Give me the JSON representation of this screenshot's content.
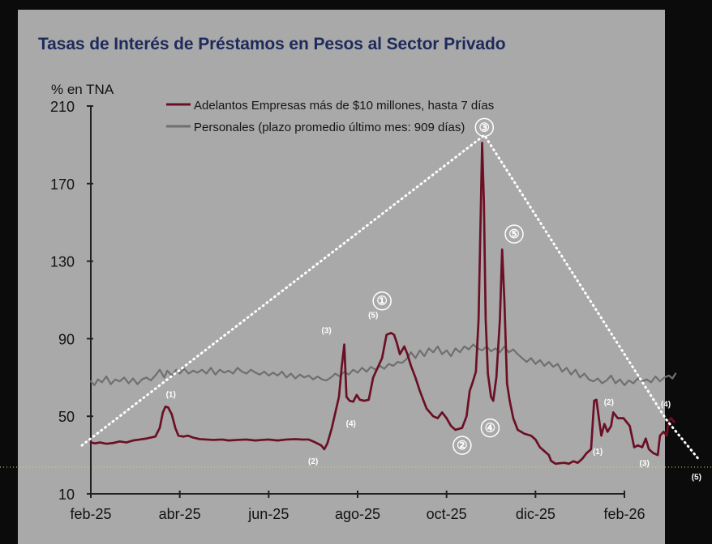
{
  "chart_data": {
    "type": "line",
    "title": "Tasas de Interés de Préstamos en Pesos al Sector Privado",
    "subtitle": "",
    "xlabel": "",
    "ylabel": "% en TNA",
    "ylim": [
      10,
      210
    ],
    "yticks": [
      10,
      50,
      90,
      130,
      170,
      210
    ],
    "x_axis_labels": [
      "feb-25",
      "abr-25",
      "jun-25",
      "ago-25",
      "oct-25",
      "dic-25",
      "feb-26"
    ],
    "x_index_range": [
      0,
      12
    ],
    "legend": {
      "placement": "top-center",
      "entries": [
        {
          "series": "Adelantos",
          "label": "Adelantos Empresas más de $10 millones, hasta 7 días"
        },
        {
          "series": "Personales",
          "label": "Personales (plazo promedio último mes: 909 días)"
        }
      ]
    },
    "grid": false,
    "colors": {
      "background": "#a9a9a9",
      "title": "#1d2a5c",
      "adelantos": "#6b0f24",
      "personales": "#6f6f6f",
      "axis": "#202020",
      "annotation": "#ffffff"
    },
    "series": [
      {
        "name": "Adelantos",
        "label": "Adelantos Empresas más de $10 millones, hasta 7 días",
        "points": [
          [
            0.0,
            36.5
          ],
          [
            0.1,
            36.0
          ],
          [
            0.2,
            36.5
          ],
          [
            0.35,
            35.8
          ],
          [
            0.5,
            36.2
          ],
          [
            0.65,
            37.0
          ],
          [
            0.8,
            36.5
          ],
          [
            0.95,
            37.5
          ],
          [
            1.1,
            38.0
          ],
          [
            1.25,
            38.5
          ],
          [
            1.45,
            39.5
          ],
          [
            1.55,
            44.0
          ],
          [
            1.62,
            52.0
          ],
          [
            1.68,
            55.0
          ],
          [
            1.74,
            54.5
          ],
          [
            1.82,
            51.0
          ],
          [
            1.9,
            44.0
          ],
          [
            1.97,
            40.0
          ],
          [
            2.08,
            39.5
          ],
          [
            2.18,
            40.0
          ],
          [
            2.3,
            39.0
          ],
          [
            2.45,
            38.2
          ],
          [
            2.6,
            38.0
          ],
          [
            2.75,
            37.8
          ],
          [
            2.95,
            38.0
          ],
          [
            3.1,
            37.5
          ],
          [
            3.3,
            37.8
          ],
          [
            3.5,
            38.0
          ],
          [
            3.7,
            37.5
          ],
          [
            3.85,
            37.8
          ],
          [
            4.0,
            38.0
          ],
          [
            4.2,
            37.5
          ],
          [
            4.4,
            38.0
          ],
          [
            4.6,
            38.2
          ],
          [
            4.75,
            38.0
          ],
          [
            4.9,
            38.0
          ],
          [
            5.05,
            36.5
          ],
          [
            5.18,
            35.0
          ],
          [
            5.25,
            33.0
          ],
          [
            5.32,
            36.0
          ],
          [
            5.42,
            44.0
          ],
          [
            5.5,
            52.0
          ],
          [
            5.58,
            60.0
          ],
          [
            5.64,
            75.0
          ],
          [
            5.7,
            87.0
          ],
          [
            5.75,
            60.0
          ],
          [
            5.82,
            58.0
          ],
          [
            5.9,
            57.5
          ],
          [
            5.98,
            61.0
          ],
          [
            6.05,
            58.5
          ],
          [
            6.15,
            58.0
          ],
          [
            6.25,
            58.5
          ],
          [
            6.35,
            70.0
          ],
          [
            6.45,
            75.0
          ],
          [
            6.55,
            80.0
          ],
          [
            6.65,
            92.0
          ],
          [
            6.75,
            93.0
          ],
          [
            6.82,
            92.0
          ],
          [
            6.88,
            88.0
          ],
          [
            6.95,
            82.0
          ],
          [
            7.05,
            86.0
          ],
          [
            7.12,
            82.0
          ],
          [
            7.2,
            76.0
          ],
          [
            7.3,
            70.0
          ],
          [
            7.4,
            63.0
          ],
          [
            7.55,
            54.0
          ],
          [
            7.7,
            50.0
          ],
          [
            7.8,
            49.0
          ],
          [
            7.9,
            52.0
          ],
          [
            8.0,
            49.0
          ],
          [
            8.1,
            45.0
          ],
          [
            8.2,
            43.0
          ],
          [
            8.35,
            44.0
          ],
          [
            8.45,
            50.0
          ],
          [
            8.52,
            63.0
          ],
          [
            8.58,
            67.0
          ],
          [
            8.66,
            73.0
          ],
          [
            8.72,
            100.0
          ],
          [
            8.76,
            145.0
          ],
          [
            8.8,
            191.0
          ],
          [
            8.84,
            160.0
          ],
          [
            8.88,
            100.0
          ],
          [
            8.93,
            72.0
          ],
          [
            9.0,
            60.0
          ],
          [
            9.05,
            58.0
          ],
          [
            9.12,
            70.0
          ],
          [
            9.2,
            100.0
          ],
          [
            9.25,
            136.0
          ],
          [
            9.3,
            110.0
          ],
          [
            9.36,
            67.0
          ],
          [
            9.42,
            58.0
          ],
          [
            9.5,
            49.0
          ],
          [
            9.6,
            43.0
          ],
          [
            9.75,
            41.0
          ],
          [
            9.9,
            40.0
          ],
          [
            10.0,
            38.0
          ],
          [
            10.1,
            34.0
          ],
          [
            10.2,
            32.0
          ],
          [
            10.3,
            30.0
          ],
          [
            10.35,
            27.0
          ],
          [
            10.45,
            25.5
          ],
          [
            10.55,
            25.8
          ],
          [
            10.65,
            26.0
          ],
          [
            10.75,
            25.5
          ],
          [
            10.85,
            26.8
          ],
          [
            10.95,
            26.0
          ],
          [
            11.05,
            28.0
          ],
          [
            11.15,
            31.0
          ],
          [
            11.25,
            33.0
          ],
          [
            11.32,
            58.0
          ],
          [
            11.37,
            58.5
          ],
          [
            11.42,
            50.0
          ],
          [
            11.48,
            40.0
          ],
          [
            11.55,
            46.0
          ],
          [
            11.62,
            42.0
          ],
          [
            11.7,
            45.0
          ],
          [
            11.75,
            52.0
          ],
          [
            11.85,
            49.0
          ],
          [
            11.98,
            49.0
          ],
          [
            12.05,
            47.0
          ],
          [
            12.12,
            45.0
          ],
          [
            12.22,
            34.0
          ],
          [
            12.3,
            35.0
          ],
          [
            12.4,
            34.0
          ],
          [
            12.48,
            38.5
          ],
          [
            12.55,
            33.0
          ],
          [
            12.65,
            31.0
          ],
          [
            12.75,
            30.0
          ],
          [
            12.8,
            40.0
          ],
          [
            12.88,
            42.0
          ],
          [
            12.95,
            40.0
          ],
          [
            13.0,
            48.0
          ],
          [
            13.05,
            49.0
          ],
          [
            13.12,
            47.0
          ]
        ]
      },
      {
        "name": "Personales",
        "label": "Personales (plazo promedio último mes: 909 días)",
        "points": [
          [
            0.0,
            68.0
          ],
          [
            0.08,
            66.0
          ],
          [
            0.16,
            69.0
          ],
          [
            0.25,
            67.5
          ],
          [
            0.35,
            70.5
          ],
          [
            0.45,
            66.5
          ],
          [
            0.55,
            69.0
          ],
          [
            0.65,
            68.0
          ],
          [
            0.75,
            70.0
          ],
          [
            0.85,
            67.0
          ],
          [
            0.95,
            69.5
          ],
          [
            1.05,
            66.5
          ],
          [
            1.15,
            69.0
          ],
          [
            1.25,
            70.0
          ],
          [
            1.35,
            68.5
          ],
          [
            1.45,
            71.0
          ],
          [
            1.55,
            74.0
          ],
          [
            1.65,
            70.0
          ],
          [
            1.72,
            73.5
          ],
          [
            1.82,
            71.0
          ],
          [
            1.92,
            74.0
          ],
          [
            2.0,
            72.0
          ],
          [
            2.1,
            74.5
          ],
          [
            2.2,
            72.0
          ],
          [
            2.3,
            73.5
          ],
          [
            2.4,
            72.5
          ],
          [
            2.5,
            74.0
          ],
          [
            2.6,
            72.0
          ],
          [
            2.7,
            75.0
          ],
          [
            2.8,
            71.5
          ],
          [
            2.9,
            74.0
          ],
          [
            3.0,
            72.5
          ],
          [
            3.1,
            73.5
          ],
          [
            3.2,
            72.0
          ],
          [
            3.3,
            75.0
          ],
          [
            3.4,
            73.0
          ],
          [
            3.5,
            72.0
          ],
          [
            3.6,
            74.0
          ],
          [
            3.7,
            72.5
          ],
          [
            3.8,
            71.5
          ],
          [
            3.9,
            73.0
          ],
          [
            4.0,
            71.0
          ],
          [
            4.1,
            72.5
          ],
          [
            4.2,
            71.0
          ],
          [
            4.3,
            73.0
          ],
          [
            4.4,
            70.0
          ],
          [
            4.5,
            72.0
          ],
          [
            4.6,
            69.5
          ],
          [
            4.7,
            71.5
          ],
          [
            4.8,
            70.0
          ],
          [
            4.9,
            71.0
          ],
          [
            5.0,
            69.0
          ],
          [
            5.1,
            70.5
          ],
          [
            5.2,
            69.0
          ],
          [
            5.3,
            68.5
          ],
          [
            5.4,
            70.0
          ],
          [
            5.5,
            72.0
          ],
          [
            5.6,
            70.5
          ],
          [
            5.7,
            73.0
          ],
          [
            5.8,
            71.5
          ],
          [
            5.9,
            74.0
          ],
          [
            6.0,
            72.5
          ],
          [
            6.1,
            75.0
          ],
          [
            6.2,
            73.0
          ],
          [
            6.3,
            75.5
          ],
          [
            6.4,
            74.0
          ],
          [
            6.5,
            76.0
          ],
          [
            6.6,
            74.5
          ],
          [
            6.7,
            77.0
          ],
          [
            6.8,
            76.0
          ],
          [
            6.9,
            78.0
          ],
          [
            7.0,
            77.5
          ],
          [
            7.1,
            79.5
          ],
          [
            7.2,
            83.0
          ],
          [
            7.3,
            80.0
          ],
          [
            7.4,
            84.0
          ],
          [
            7.5,
            81.0
          ],
          [
            7.6,
            85.0
          ],
          [
            7.7,
            83.0
          ],
          [
            7.8,
            86.0
          ],
          [
            7.9,
            82.0
          ],
          [
            8.0,
            84.0
          ],
          [
            8.1,
            81.0
          ],
          [
            8.2,
            85.0
          ],
          [
            8.3,
            83.0
          ],
          [
            8.4,
            86.0
          ],
          [
            8.5,
            84.5
          ],
          [
            8.6,
            87.0
          ],
          [
            8.7,
            85.0
          ],
          [
            8.8,
            84.0
          ],
          [
            8.9,
            86.0
          ],
          [
            9.0,
            83.5
          ],
          [
            9.1,
            85.0
          ],
          [
            9.2,
            83.0
          ],
          [
            9.3,
            86.0
          ],
          [
            9.4,
            83.0
          ],
          [
            9.5,
            84.5
          ],
          [
            9.6,
            82.0
          ],
          [
            9.7,
            80.0
          ],
          [
            9.8,
            78.0
          ],
          [
            9.9,
            80.0
          ],
          [
            10.0,
            77.0
          ],
          [
            10.1,
            79.0
          ],
          [
            10.2,
            76.0
          ],
          [
            10.3,
            78.0
          ],
          [
            10.4,
            75.5
          ],
          [
            10.5,
            77.0
          ],
          [
            10.6,
            73.0
          ],
          [
            10.7,
            75.0
          ],
          [
            10.8,
            71.5
          ],
          [
            10.9,
            74.0
          ],
          [
            11.0,
            70.0
          ],
          [
            11.1,
            72.0
          ],
          [
            11.2,
            69.0
          ],
          [
            11.3,
            68.0
          ],
          [
            11.4,
            69.5
          ],
          [
            11.5,
            67.0
          ],
          [
            11.6,
            68.5
          ],
          [
            11.7,
            71.0
          ],
          [
            11.8,
            67.0
          ],
          [
            11.9,
            69.0
          ],
          [
            12.0,
            66.0
          ],
          [
            12.1,
            68.5
          ],
          [
            12.2,
            67.0
          ],
          [
            12.3,
            69.5
          ],
          [
            12.4,
            68.0
          ],
          [
            12.5,
            69.0
          ],
          [
            12.6,
            67.5
          ],
          [
            12.7,
            70.5
          ],
          [
            12.8,
            68.0
          ],
          [
            12.9,
            70.0
          ],
          [
            13.0,
            71.0
          ],
          [
            13.08,
            69.5
          ],
          [
            13.15,
            72.0
          ]
        ]
      }
    ],
    "overlay_path": {
      "style": "dotted-white",
      "points": [
        [
          -0.2,
          35.0
        ],
        [
          8.85,
          195.0
        ],
        [
          12.95,
          48.0
        ],
        [
          13.7,
          27.0
        ]
      ]
    },
    "annotations": [
      {
        "text": "①",
        "kind": "circle",
        "x": 6.55,
        "y": 109.5
      },
      {
        "text": "②",
        "kind": "circle",
        "x": 8.35,
        "y": 35.0
      },
      {
        "text": "③",
        "kind": "circle",
        "x": 8.85,
        "y": 199.0
      },
      {
        "text": "④",
        "kind": "circle",
        "x": 8.98,
        "y": 44.0
      },
      {
        "text": "⑤",
        "kind": "circle",
        "x": 9.52,
        "y": 144.0
      },
      {
        "text": "(1)",
        "kind": "paren",
        "x": 1.8,
        "y": 61.0
      },
      {
        "text": "(2)",
        "kind": "paren",
        "x": 5.0,
        "y": 26.5
      },
      {
        "text": "(3)",
        "kind": "paren",
        "x": 5.3,
        "y": 94.0
      },
      {
        "text": "(4)",
        "kind": "paren",
        "x": 5.85,
        "y": 46.0
      },
      {
        "text": "(5)",
        "kind": "paren",
        "x": 6.35,
        "y": 102.0
      },
      {
        "text": "(1)",
        "kind": "paren",
        "x": 11.4,
        "y": 31.5
      },
      {
        "text": "(2)",
        "kind": "paren",
        "x": 11.65,
        "y": 57.0
      },
      {
        "text": "(3)",
        "kind": "paren",
        "x": 12.45,
        "y": 25.5
      },
      {
        "text": "(4)",
        "kind": "paren",
        "x": 12.93,
        "y": 56.0
      },
      {
        "text": "(5)",
        "kind": "paren",
        "x": 13.62,
        "y": 18.5
      }
    ],
    "reference_lines": [
      {
        "style": "dotted-yellow",
        "y": 24.5
      }
    ]
  }
}
